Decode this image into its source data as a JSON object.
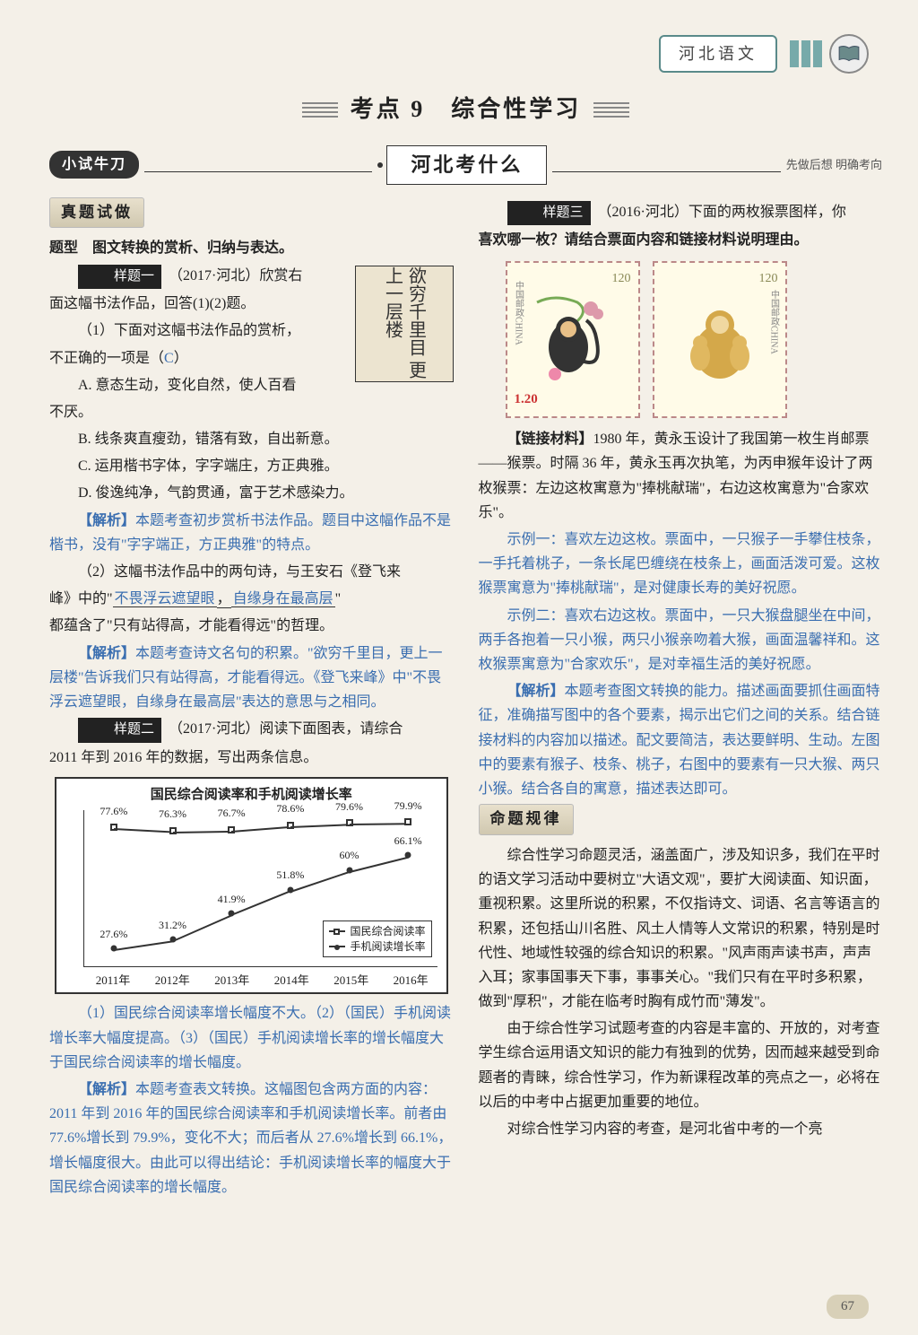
{
  "header": {
    "subject": "河北语文"
  },
  "title": "考点 9　综合性学习",
  "badge": "小试牛刀",
  "subtitle": "河北考什么",
  "subnote": "先做后想 明确考向",
  "left": {
    "sec1": "真题试做",
    "qtype": "题型　图文转换的赏析、归纳与表达。",
    "tag1": "样题一",
    "src1": "（2017·河北）欣赏右",
    "l1": "面这幅书法作品，回答(1)(2)题。",
    "l2": "（1）下面对这幅书法作品的赏析，",
    "l3_a": "不正确的一项是（",
    "l3_ans": "C",
    "l3_b": "）",
    "optA": "A. 意态生动，变化自然，使人百看",
    "optA2": "不厌。",
    "optB": "B. 线条爽直瘦劲，错落有致，自出新意。",
    "optC": "C. 运用楷书字体，字字端庄，方正典雅。",
    "optD": "D. 俊逸纯净，气韵贯通，富于艺术感染力。",
    "ana1_t": "【解析】",
    "ana1": "本题考查初步赏析书法作品。题目中这幅作品不是楷书，没有\"字字端正，方正典雅\"的特点。",
    "q2a": "（2）这幅书法作品中的两句诗，与王安石《登飞来",
    "q2b": "峰》中的\"",
    "q2_ans1": "不畏浮云遮望眼",
    "q2_c": "，",
    "q2_ans2": "自缘身在最高层",
    "q2_d": "\"",
    "q2e": "都蕴含了\"只有站得高，才能看得远\"的哲理。",
    "ana2_t": "【解析】",
    "ana2": "本题考查诗文名句的积累。\"欲穷千里目，更上一层楼\"告诉我们只有站得高，才能看得远。《登飞来峰》中\"不畏浮云遮望眼，自缘身在最高层\"表达的意思与之相同。",
    "tag2": "样题二",
    "src2": "（2017·河北）阅读下面图表，请综合",
    "src2b": "2011 年到 2016 年的数据，写出两条信息。",
    "chart": {
      "title": "国民综合阅读率和手机阅读增长率",
      "years": [
        "2011年",
        "2012年",
        "2013年",
        "2014年",
        "2015年",
        "2016年"
      ],
      "series1_name": "国民综合阅读率",
      "series2_name": "手机阅读增长率",
      "s1": [
        77.6,
        76.3,
        76.7,
        78.6,
        79.6,
        79.9
      ],
      "s2": [
        27.6,
        31.2,
        41.9,
        51.8,
        60.0,
        66.1
      ],
      "s1_labels": [
        "77.6%",
        "76.3%",
        "76.7%",
        "78.6%",
        "79.6%",
        "79.9%"
      ],
      "s2_labels": [
        "27.6%",
        "31.2%",
        "41.9%",
        "51.8%",
        "60%",
        "66.1%"
      ],
      "ymin": 20,
      "ymax": 85
    },
    "ans3": "（1）国民综合阅读率增长幅度不大。（2）（国民）手机阅读增长率大幅度提高。（3）（国民）手机阅读增长率的增长幅度大于国民综合阅读率的增长幅度。",
    "ana3_t": "【解析】",
    "ana3": "本题考查表文转换。这幅图包含两方面的内容：2011 年到 2016 年的国民综合阅读率和手机阅读增长率。前者由 77.6%增长到 79.9%，变化不大；而后者从 27.6%增长到 66.1%，增长幅度很大。由此可以得出结论：手机阅读增长率的幅度大于国民综合阅读率的增长幅度。",
    "callig": "欲穷千里目 更上一层楼"
  },
  "right": {
    "tag3": "样题三",
    "src3": "（2016·河北）下面的两枚猴票图样，你",
    "src3b": "喜欢哪一枚？请结合票面内容和链接材料说明理由。",
    "stamp_val": "120",
    "stamp_val2": "1.20",
    "stamp_side": "中国邮政CHINA",
    "link_t": "【链接材料】",
    "link": "1980 年，黄永玉设计了我国第一枚生肖邮票——猴票。时隔 36 年，黄永玉再次执笔，为丙申猴年设计了两枚猴票：左边这枚寓意为\"捧桃献瑞\"，右边这枚寓意为\"合家欢乐\"。",
    "ex1": "示例一：喜欢左边这枚。票面中，一只猴子一手攀住枝条，一手托着桃子，一条长尾巴缠绕在枝条上，画面活泼可爱。这枚猴票寓意为\"捧桃献瑞\"，是对健康长寿的美好祝愿。",
    "ex2": "示例二：喜欢右边这枚。票面中，一只大猴盘腿坐在中间，两手各抱着一只小猴，两只小猴亲吻着大猴，画面温馨祥和。这枚猴票寓意为\"合家欢乐\"，是对幸福生活的美好祝愿。",
    "ana4_t": "【解析】",
    "ana4": "本题考查图文转换的能力。描述画面要抓住画面特征，准确描写图中的各个要素，揭示出它们之间的关系。结合链接材料的内容加以描述。配文要简洁，表达要鲜明、生动。左图中的要素有猴子、枝条、桃子，右图中的要素有一只大猴、两只小猴。结合各自的寓意，描述表达即可。",
    "sec2": "命题规律",
    "p1": "综合性学习命题灵活，涵盖面广，涉及知识多，我们在平时的语文学习活动中要树立\"大语文观\"，要扩大阅读面、知识面，重视积累。这里所说的积累，不仅指诗文、词语、名言等语言的积累，还包括山川名胜、风土人情等人文常识的积累，特别是时代性、地域性较强的综合知识的积累。\"风声雨声读书声，声声入耳；家事国事天下事，事事关心。\"我们只有在平时多积累，做到\"厚积\"，才能在临考时胸有成竹而\"薄发\"。",
    "p2": "由于综合性学习试题考查的内容是丰富的、开放的，对考查学生综合运用语文知识的能力有独到的优势，因而越来越受到命题者的青睐，综合性学习，作为新课程改革的亮点之一，必将在以后的中考中占据更加重要的地位。",
    "p3": "对综合性学习内容的考查，是河北省中考的一个亮"
  },
  "page": "67"
}
